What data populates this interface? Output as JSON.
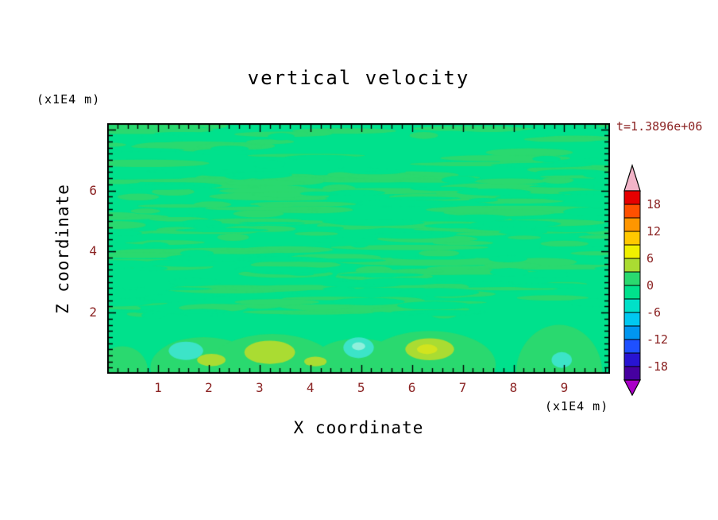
{
  "title": "vertical velocity",
  "time_label": "t=1.3896e+06",
  "axis": {
    "x_label": "X coordinate",
    "y_label": "Z coordinate",
    "x_unit": "(x1E4 m)",
    "y_unit": "(x1E4 m)"
  },
  "colors": {
    "number_text": "#8b2323",
    "label_text": "#000000"
  },
  "chart_data": {
    "type": "heatmap",
    "subtype": "filled-contour",
    "title": "vertical velocity",
    "xlabel": "X coordinate",
    "ylabel": "Z coordinate",
    "x_unit_label": "(x1E4 m)",
    "y_unit_label": "(x1E4 m)",
    "time_annotation": "t=1.3896e+06",
    "xlim": [
      0,
      9.9
    ],
    "ylim": [
      0,
      8.2
    ],
    "xticks": [
      1,
      2,
      3,
      4,
      5,
      6,
      7,
      8,
      9
    ],
    "yticks": [
      2,
      4,
      6
    ],
    "grid": false,
    "legend_position": "right-colorbar",
    "colorbar": {
      "tick_labels": [
        "18",
        "12",
        "6",
        "0",
        "-6",
        "-12",
        "-18"
      ],
      "levels": [
        -21,
        -18,
        -15,
        -12,
        -9,
        -6,
        -3,
        0,
        3,
        6,
        9,
        12,
        15,
        18,
        21
      ],
      "colors_top_to_bottom": [
        "#e60000",
        "#ff5000",
        "#ff9600",
        "#ffc800",
        "#f0f000",
        "#aadc32",
        "#2ad96f",
        "#00e18c",
        "#00e0c8",
        "#00c8f0",
        "#0096f0",
        "#1e50ff",
        "#2814d2",
        "#4600a0"
      ],
      "over_color": "#f2b4c8",
      "under_color": "#aa00c8"
    },
    "field": {
      "description": "vertical velocity mostly near 0 (green band -3..0 background with 0..3 green streaks); weak updraft cells (+3..+9) and downdraft spots (-6..-3) near the lower boundary",
      "background_color": "#00e18c",
      "streak_color": "#2ad96f",
      "streaks": {
        "seed": 20240613,
        "count": 175,
        "erase_count": 95,
        "z_min": 1.9,
        "z_max": 8.2
      },
      "domes": [
        [
          1.9,
          0.2,
          1.05,
          1.0
        ],
        [
          3.25,
          0.25,
          1.25,
          1.05
        ],
        [
          4.95,
          0.2,
          1.0,
          0.95
        ],
        [
          6.35,
          0.3,
          1.3,
          1.1
        ],
        [
          8.9,
          0.0,
          0.85,
          1.6
        ],
        [
          0.3,
          0.1,
          0.5,
          0.8
        ]
      ],
      "blobs": [
        {
          "x": 3.2,
          "z": 0.7,
          "rx": 0.5,
          "rz": 0.38,
          "color": "#aadc32"
        },
        {
          "x": 6.35,
          "z": 0.8,
          "rx": 0.48,
          "rz": 0.36,
          "color": "#aadc32"
        },
        {
          "x": 6.3,
          "z": 0.8,
          "rx": 0.2,
          "rz": 0.16,
          "color": "#d2e41e"
        },
        {
          "x": 2.05,
          "z": 0.45,
          "rx": 0.28,
          "rz": 0.2,
          "color": "#aadc32"
        },
        {
          "x": 4.1,
          "z": 0.4,
          "rx": 0.22,
          "rz": 0.16,
          "color": "#aadc32"
        },
        {
          "x": 1.55,
          "z": 0.75,
          "rx": 0.34,
          "rz": 0.3,
          "color": "#3ce4c8"
        },
        {
          "x": 4.95,
          "z": 0.85,
          "rx": 0.3,
          "rz": 0.34,
          "color": "#3ce4c8"
        },
        {
          "x": 4.95,
          "z": 0.9,
          "rx": 0.13,
          "rz": 0.13,
          "color": "#8ff0dc"
        },
        {
          "x": 8.95,
          "z": 0.45,
          "rx": 0.2,
          "rz": 0.26,
          "color": "#3ce4c8"
        }
      ]
    }
  }
}
